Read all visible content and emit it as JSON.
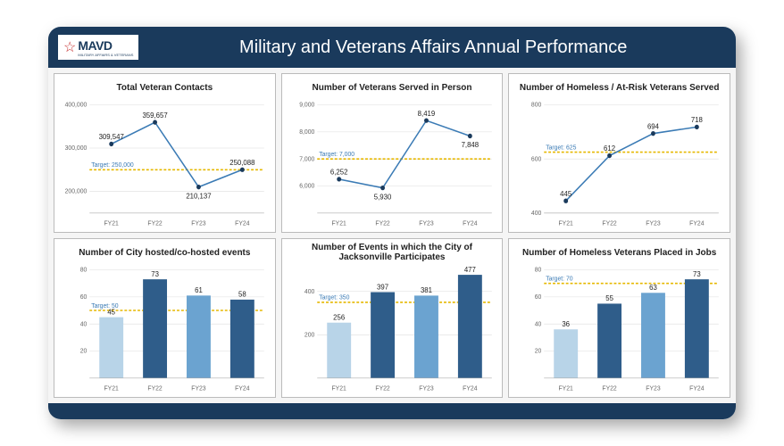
{
  "header": {
    "logo_brand": "MAVD",
    "logo_subtitle": "MILITARY AFFAIRS & VETERANS",
    "title": "Military and Veterans Affairs Annual Performance"
  },
  "colors": {
    "header_bg": "#1a3a5c",
    "card_border": "#bbbbbb",
    "gridline": "#dddddd",
    "axis_text": "#666666",
    "line": "#3b7bb5",
    "dot": "#1a3a5c",
    "target_line": "#e6b800",
    "target_text": "#3b7bb5",
    "bar_palette": [
      "#b8d4e8",
      "#2f5d8a",
      "#6ba3d0",
      "#2f5d8a"
    ]
  },
  "categories": [
    "FY21",
    "FY22",
    "FY23",
    "FY24"
  ],
  "charts": [
    {
      "id": "total-contacts",
      "title": "Total Veteran Contacts",
      "type": "line",
      "values": [
        309547,
        359657,
        210137,
        250088
      ],
      "value_labels": [
        "309,547",
        "359,657",
        "210,137",
        "250,088"
      ],
      "ylim": [
        150000,
        400000
      ],
      "yticks": [
        200000,
        300000,
        400000
      ],
      "ytick_labels": [
        "200,000",
        "300,000",
        "400,000"
      ],
      "target": 250000,
      "target_label": "Target: 250,000"
    },
    {
      "id": "served-in-person",
      "title": "Number of Veterans Served in Person",
      "type": "line",
      "values": [
        6252,
        5930,
        8419,
        7848
      ],
      "value_labels": [
        "6,252",
        "5,930",
        "8,419",
        "7,848"
      ],
      "ylim": [
        5000,
        9000
      ],
      "yticks": [
        6000,
        7000,
        8000,
        9000
      ],
      "ytick_labels": [
        "6,000",
        "7,000",
        "8,000",
        "9,000"
      ],
      "target": 7000,
      "target_label": "Target: 7,000"
    },
    {
      "id": "homeless-served",
      "title": "Number of Homeless / At-Risk Veterans Served",
      "type": "line",
      "values": [
        445,
        612,
        694,
        718
      ],
      "value_labels": [
        "445",
        "612",
        "694",
        "718"
      ],
      "ylim": [
        400,
        800
      ],
      "yticks": [
        400,
        600,
        800
      ],
      "ytick_labels": [
        "400",
        "600",
        "800"
      ],
      "target": 625,
      "target_label": "Target: 625"
    },
    {
      "id": "hosted-events",
      "title": "Number of City hosted/co-hosted events",
      "type": "bar",
      "values": [
        45,
        73,
        61,
        58
      ],
      "value_labels": [
        "45",
        "73",
        "61",
        "58"
      ],
      "ylim": [
        0,
        80
      ],
      "yticks": [
        20,
        40,
        60,
        80
      ],
      "ytick_labels": [
        "20",
        "40",
        "60",
        "80"
      ],
      "target": 50,
      "target_label": "Target: 50"
    },
    {
      "id": "participates-events",
      "title": "Number of Events in which the City of Jacksonville Participates",
      "type": "bar",
      "values": [
        256,
        397,
        381,
        477
      ],
      "value_labels": [
        "256",
        "397",
        "381",
        "477"
      ],
      "ylim": [
        0,
        500
      ],
      "yticks": [
        200,
        400
      ],
      "ytick_labels": [
        "200",
        "400"
      ],
      "target": 350,
      "target_label": "Target: 350"
    },
    {
      "id": "placed-in-jobs",
      "title": "Number of Homeless Veterans Placed in Jobs",
      "type": "bar",
      "values": [
        36,
        55,
        63,
        73
      ],
      "value_labels": [
        "36",
        "55",
        "63",
        "73"
      ],
      "ylim": [
        0,
        80
      ],
      "yticks": [
        20,
        40,
        60,
        80
      ],
      "ytick_labels": [
        "20",
        "40",
        "60",
        "80"
      ],
      "target": 70,
      "target_label": "Target: 70"
    }
  ]
}
